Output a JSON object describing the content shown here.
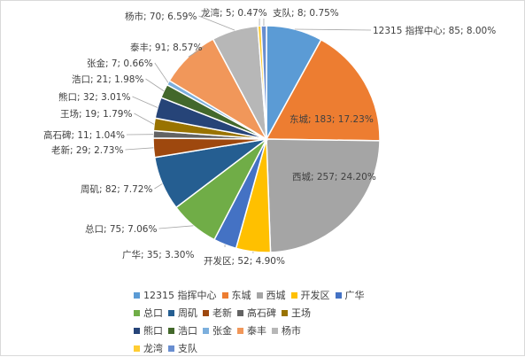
{
  "chart_data": {
    "type": "pie",
    "title": "",
    "legend_position": "bottom",
    "slices": [
      {
        "name": "12315 指挥中心",
        "value": 85,
        "percent": "8.00%",
        "color": "#5b9bd5"
      },
      {
        "name": "东城",
        "value": 183,
        "percent": "17.23%",
        "color": "#ed7d31"
      },
      {
        "name": "西城",
        "value": 257,
        "percent": "24.20%",
        "color": "#a5a5a5"
      },
      {
        "name": "开发区",
        "value": 52,
        "percent": "4.90%",
        "color": "#ffc000"
      },
      {
        "name": "广华",
        "value": 35,
        "percent": "3.30%",
        "color": "#4472c4"
      },
      {
        "name": "总口",
        "value": 75,
        "percent": "7.06%",
        "color": "#70ad47"
      },
      {
        "name": "周矶",
        "value": 82,
        "percent": "7.72%",
        "color": "#255e91"
      },
      {
        "name": "老新",
        "value": 29,
        "percent": "2.73%",
        "color": "#9e480e"
      },
      {
        "name": "高石碑",
        "value": 11,
        "percent": "1.04%",
        "color": "#636363"
      },
      {
        "name": "王场",
        "value": 19,
        "percent": "1.79%",
        "color": "#997300"
      },
      {
        "name": "熊口",
        "value": 32,
        "percent": "3.01%",
        "color": "#264478"
      },
      {
        "name": "浩口",
        "value": 21,
        "percent": "1.98%",
        "color": "#43682b"
      },
      {
        "name": "张金",
        "value": 7,
        "percent": "0.66%",
        "color": "#7cafdd"
      },
      {
        "name": "泰丰",
        "value": 91,
        "percent": "8.57%",
        "color": "#f1975a"
      },
      {
        "name": "杨市",
        "value": 70,
        "percent": "6.59%",
        "color": "#b7b7b7"
      },
      {
        "name": "龙湾",
        "value": 5,
        "percent": "0.47%",
        "color": "#ffcd33"
      },
      {
        "name": "支队",
        "value": 8,
        "percent": "0.75%",
        "color": "#698ed0"
      }
    ]
  }
}
